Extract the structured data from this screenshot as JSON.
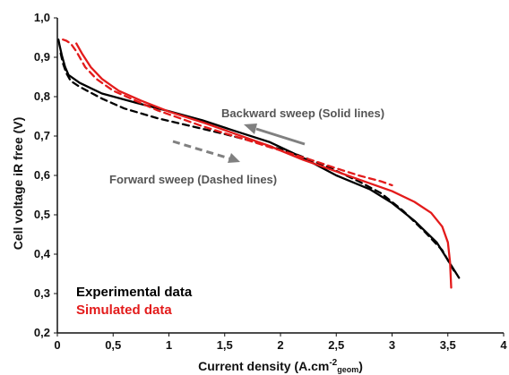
{
  "chart_data": {
    "type": "line",
    "xlabel": "Current density (A.cm",
    "xlabel_sup": "-2",
    "xlabel_sub": "geom",
    "xlabel_close": ")",
    "ylabel": "Cell voltage iR free (V)",
    "xlim": [
      0,
      4
    ],
    "ylim": [
      0.2,
      1.0
    ],
    "x_ticks": [
      "0",
      "0,5",
      "1",
      "1,5",
      "2",
      "2,5",
      "3",
      "3,5",
      "4"
    ],
    "x_tick_values": [
      0,
      0.5,
      1,
      1.5,
      2,
      2.5,
      3,
      3.5,
      4
    ],
    "y_ticks": [
      "0,2",
      "0,3",
      "0,4",
      "0,5",
      "0,6",
      "0,7",
      "0,8",
      "0,9",
      "1,0"
    ],
    "y_tick_values": [
      0.2,
      0.3,
      0.4,
      0.5,
      0.6,
      0.7,
      0.8,
      0.9,
      1.0
    ],
    "grid": false,
    "annotations": {
      "backward": "Backward sweep (Solid lines)",
      "forward": "Forward sweep (Dashed lines)"
    },
    "legend": {
      "experimental": "Experimental data",
      "simulated": "Simulated data"
    },
    "colors": {
      "experimental": "#000000",
      "simulated": "#e31b1b",
      "annotation_arrow": "#808080"
    },
    "series": [
      {
        "group": "experimental",
        "sweep": "backward",
        "dash": false,
        "x": [
          0.01,
          0.02,
          0.04,
          0.07,
          0.1,
          0.2,
          0.4,
          0.7,
          1.0,
          1.3,
          1.6,
          1.9,
          2.2,
          2.5,
          2.8,
          3.0,
          3.2,
          3.4,
          3.5,
          3.6
        ],
        "y": [
          0.945,
          0.93,
          0.905,
          0.875,
          0.855,
          0.835,
          0.808,
          0.785,
          0.763,
          0.74,
          0.712,
          0.685,
          0.645,
          0.6,
          0.565,
          0.53,
          0.485,
          0.43,
          0.385,
          0.34
        ]
      },
      {
        "group": "experimental",
        "sweep": "forward",
        "dash": true,
        "x": [
          0.03,
          0.05,
          0.08,
          0.12,
          0.2,
          0.4,
          0.6,
          0.9,
          1.2,
          1.5,
          1.8,
          2.1,
          2.4,
          2.7,
          2.9,
          3.1,
          3.3,
          3.45,
          3.57
        ],
        "y": [
          0.91,
          0.885,
          0.86,
          0.84,
          0.825,
          0.795,
          0.77,
          0.745,
          0.725,
          0.705,
          0.683,
          0.658,
          0.625,
          0.585,
          0.555,
          0.51,
          0.455,
          0.41,
          0.35
        ]
      },
      {
        "group": "simulated",
        "sweep": "backward",
        "dash": false,
        "x": [
          0.17,
          0.22,
          0.3,
          0.4,
          0.55,
          0.75,
          1.0,
          1.3,
          1.6,
          1.9,
          2.2,
          2.5,
          2.8,
          3.0,
          3.2,
          3.35,
          3.45,
          3.5,
          3.52,
          3.53
        ],
        "y": [
          0.935,
          0.91,
          0.875,
          0.845,
          0.815,
          0.79,
          0.762,
          0.735,
          0.705,
          0.675,
          0.64,
          0.61,
          0.58,
          0.56,
          0.533,
          0.505,
          0.47,
          0.43,
          0.38,
          0.315
        ]
      },
      {
        "group": "simulated",
        "sweep": "forward",
        "dash": true,
        "x": [
          0.05,
          0.08,
          0.12,
          0.17,
          0.25,
          0.35,
          0.5,
          0.7,
          0.9,
          1.1,
          1.3,
          1.5,
          1.7,
          1.9,
          2.1,
          2.3,
          2.5,
          2.7,
          2.9,
          3.0
        ],
        "y": [
          0.945,
          0.942,
          0.935,
          0.915,
          0.875,
          0.845,
          0.815,
          0.79,
          0.765,
          0.745,
          0.725,
          0.707,
          0.69,
          0.672,
          0.655,
          0.637,
          0.618,
          0.6,
          0.585,
          0.575
        ]
      }
    ]
  }
}
